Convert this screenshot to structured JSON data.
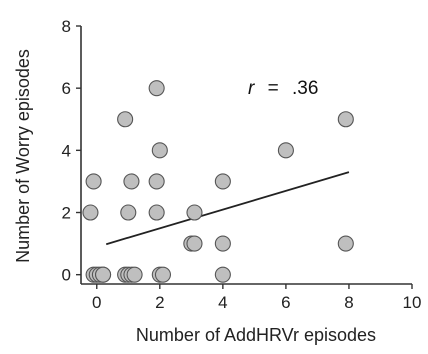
{
  "chart_data": {
    "type": "scatter",
    "xlabel": "Number of AddHRVr episodes",
    "ylabel": "Number of Worry episodes",
    "xlim": [
      -0.5,
      10
    ],
    "ylim": [
      -0.3,
      8
    ],
    "x_ticks": [
      0,
      2,
      4,
      6,
      8,
      10
    ],
    "y_ticks": [
      0,
      2,
      4,
      6,
      8
    ],
    "x_tick_labels": [
      "0",
      "2",
      "4",
      "6",
      "8",
      "10"
    ],
    "y_tick_labels": [
      "0",
      "2",
      "4",
      "6",
      "8"
    ],
    "grid": false,
    "annotation": {
      "prefix": "r",
      "equals": "=",
      "value": ".36"
    },
    "points": [
      {
        "x": -0.1,
        "y": 0
      },
      {
        "x": 0,
        "y": 0
      },
      {
        "x": 0.1,
        "y": 0
      },
      {
        "x": 0.2,
        "y": 0
      },
      {
        "x": 0.2,
        "y": 0
      },
      {
        "x": 0.9,
        "y": 0
      },
      {
        "x": 1.0,
        "y": 0
      },
      {
        "x": 1.1,
        "y": 0
      },
      {
        "x": 1.2,
        "y": 0
      },
      {
        "x": 2.0,
        "y": 0
      },
      {
        "x": 2.1,
        "y": 0
      },
      {
        "x": 4.0,
        "y": 0
      },
      {
        "x": 3.0,
        "y": 1
      },
      {
        "x": 3.1,
        "y": 1
      },
      {
        "x": 4.0,
        "y": 1
      },
      {
        "x": 7.9,
        "y": 1
      },
      {
        "x": -0.2,
        "y": 2
      },
      {
        "x": 1.0,
        "y": 2
      },
      {
        "x": 1.9,
        "y": 2
      },
      {
        "x": 3.1,
        "y": 2
      },
      {
        "x": -0.1,
        "y": 3
      },
      {
        "x": 1.1,
        "y": 3
      },
      {
        "x": 1.9,
        "y": 3
      },
      {
        "x": 4.0,
        "y": 3
      },
      {
        "x": 2.0,
        "y": 4
      },
      {
        "x": 6.0,
        "y": 4
      },
      {
        "x": 0.9,
        "y": 5
      },
      {
        "x": 7.9,
        "y": 5
      },
      {
        "x": 1.9,
        "y": 6
      }
    ],
    "trendline": {
      "x": [
        0.3,
        8.0
      ],
      "y": [
        0.98,
        3.3
      ]
    },
    "colors": {
      "point_fill": "#bfbfbf",
      "point_stroke": "#555555",
      "line": "#222222",
      "axis": "#333333"
    }
  }
}
